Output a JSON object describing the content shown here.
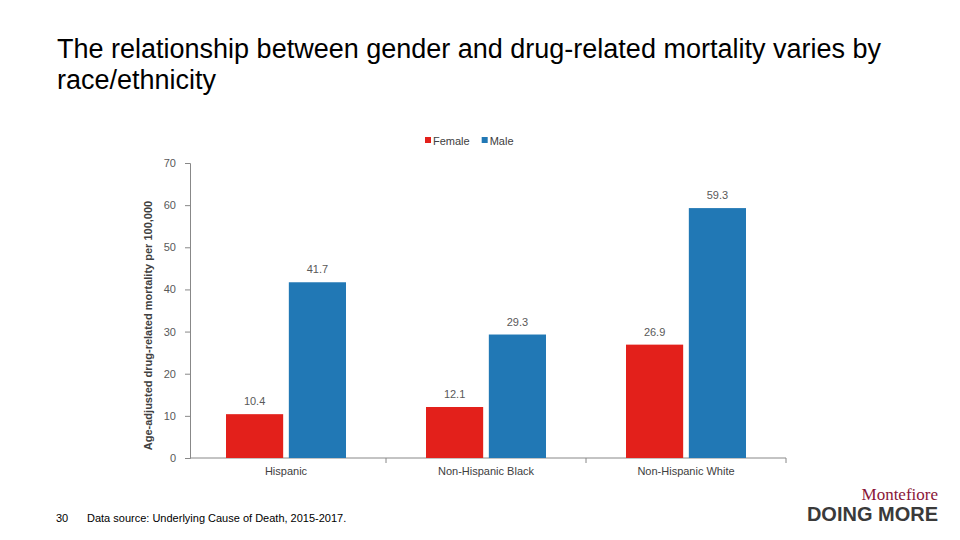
{
  "chart_data": {
    "type": "bar",
    "title": "The relationship between gender and drug-related mortality varies by race/ethnicity",
    "y_label": "Age-adjusted drug-related mortality per 100,000",
    "categories": [
      "Hispanic",
      "Non-Hispanic Black",
      "Non-Hispanic White"
    ],
    "series": [
      {
        "name": "Female",
        "color": "#e3201b",
        "values": [
          10.4,
          12.1,
          26.9
        ]
      },
      {
        "name": "Male",
        "color": "#2178b5",
        "values": [
          41.7,
          29.3,
          59.3
        ]
      }
    ],
    "ylim": [
      0,
      70
    ],
    "yticks": [
      0,
      10,
      20,
      30,
      40,
      50,
      60,
      70
    ],
    "data_labels": true,
    "legend": "top"
  },
  "slide": {
    "page": "30",
    "source": "Data source: Underlying Cause of Death, 2015-2017.",
    "logo": [
      "Montefiore",
      "DOING MORE"
    ]
  }
}
